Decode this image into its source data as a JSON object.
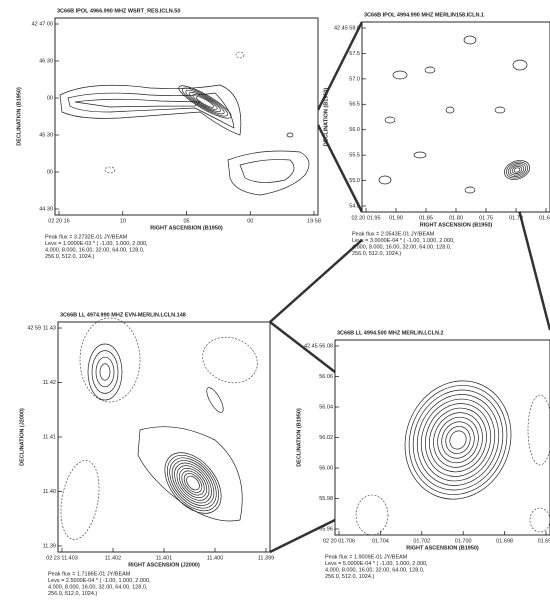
{
  "panels": [
    {
      "header": "3C66B   IPOL   4966.990 MHZ   WSRT_RES.ICLN.50",
      "y_label": "DECLINATION (B1950)",
      "x_label": "RIGHT ASCENSION (B1950)",
      "y_ticks": [
        "42 47 00",
        "46 30",
        "00",
        "45 30",
        "00",
        "44 30"
      ],
      "x_ticks": [
        "02 20 16",
        "10",
        "05",
        "00",
        "19 58"
      ],
      "caption": [
        "Peak flux = 3.2732E-01 JY/BEAM",
        "Levs = 1.0000E-03 * ( -1.00, 1.000, 2.000,",
        "4.000, 8.000, 16.00, 32.00, 64.00, 128.0,",
        "256.0, 512.0, 1024.)"
      ]
    },
    {
      "header": "3C66B   IPOL   4994.990 MHZ   MERLIN158.ICLN.1",
      "y_label": "DECLINATION (B1950)",
      "x_label": "RIGHT ASCENSION (B1950)",
      "y_ticks": [
        "42 45 58.0",
        "57.5",
        "57.0",
        "56.5",
        "56.0",
        "55.5",
        "55.0",
        "54.5"
      ],
      "x_ticks": [
        "02 20 01.95",
        "01.90",
        "01.85",
        "01.80",
        "01.75",
        "01.70",
        "01.65"
      ],
      "caption": [
        "Peak flux = 2.0543E-01 JY/BEAM",
        "Levs = 3.0000E-04 * ( -1.00, 1.000, 2.000,",
        "4.000, 8.000, 16.00, 32.00, 64.00, 128.0,",
        "256.0, 512.0, 1024.)"
      ]
    },
    {
      "header": "3C66B   LL   4974.990 MHZ   EVN-MERLIN.LCLN.148",
      "y_label": "DECLINATION (J2000)",
      "x_label": "RIGHT ASCENSION (J2000)",
      "y_ticks": [
        "42 59 11.43",
        "11.42",
        "11.41",
        "11.40",
        "11.39"
      ],
      "x_ticks": [
        "02 23 11.403",
        "11.402",
        "11.401",
        "11.400",
        "11.399"
      ],
      "caption": [
        "Peak flux = 1.7186E-01 JY/BEAM",
        "Levs = 2.5000E-04 * ( -1.00, 1.000, 2.000,",
        "4.000, 8.000, 16.00, 32.00, 64.00, 128.0,",
        "256.0, 512.0, 1024.)"
      ]
    },
    {
      "header": "3C66B   LL   4994.500 MHZ   MERLIN.LCLN.2",
      "y_label": "DECLINATION (B1950)",
      "x_label": "RIGHT ASCENSION (B1950)",
      "y_ticks": [
        "42 45 56.08",
        "56.06",
        "56.04",
        "56.02",
        "56.00",
        "55.98",
        "55.96"
      ],
      "x_ticks": [
        "02 20 01.706",
        "01.704",
        "01.702",
        "01.700",
        "01.698",
        "01.696"
      ],
      "caption": [
        "Peak flux = 1.9009E-01 JY/BEAM",
        "Levs = 5.0000E-04 * ( -1.00, 1.000, 2.000,",
        "4.000, 8.000, 16.00, 32.00, 64.00, 128.0,",
        "256.0, 512.0, 1024.)"
      ]
    }
  ]
}
